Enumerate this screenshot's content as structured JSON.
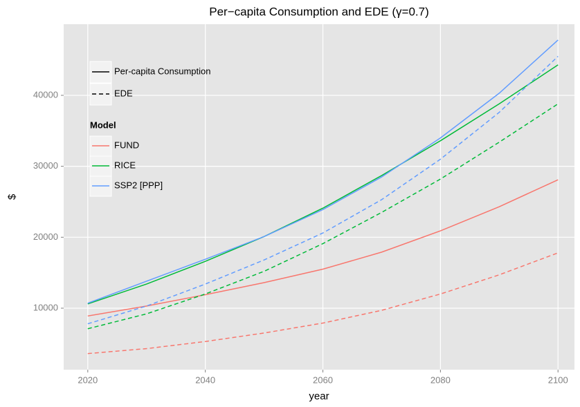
{
  "chart_data": {
    "type": "line",
    "title": "Per−capita Consumption and EDE (γ=0.7)",
    "x_label": "year",
    "y_label": "$",
    "x": [
      2020,
      2030,
      2040,
      2050,
      2060,
      2070,
      2080,
      2090,
      2100
    ],
    "linetype_legend": [
      "Per-capita Consumption",
      "EDE"
    ],
    "legend_title": "Model",
    "series": [
      {
        "name": "FUND",
        "color": "#F8766D",
        "values": [
          8900,
          10300,
          11900,
          13600,
          15500,
          17900,
          20900,
          24300,
          28100
        ],
        "ede": [
          3600,
          4300,
          5300,
          6500,
          7900,
          9700,
          12000,
          14700,
          17800
        ]
      },
      {
        "name": "RICE",
        "color": "#00BA38",
        "values": [
          10600,
          13400,
          16600,
          20100,
          24100,
          28700,
          33600,
          38800,
          44300
        ],
        "ede": [
          7100,
          9200,
          12000,
          15200,
          19100,
          23500,
          28200,
          33400,
          38800
        ]
      },
      {
        "name": "SSP2 [PPP]",
        "color": "#619CFF",
        "values": [
          10700,
          13800,
          16900,
          20100,
          23900,
          28500,
          34000,
          40300,
          47800
        ],
        "ede": [
          7800,
          10300,
          13400,
          16800,
          20600,
          25300,
          31000,
          37600,
          45500
        ]
      }
    ],
    "xlim": [
      2015.9,
      2102.8
    ],
    "ylim": [
      1330,
      50030
    ],
    "xticks": [
      2020,
      2040,
      2060,
      2080,
      2100
    ],
    "yticks": [
      10000,
      20000,
      30000,
      40000
    ],
    "grid": true,
    "legend_position": "top-left"
  }
}
